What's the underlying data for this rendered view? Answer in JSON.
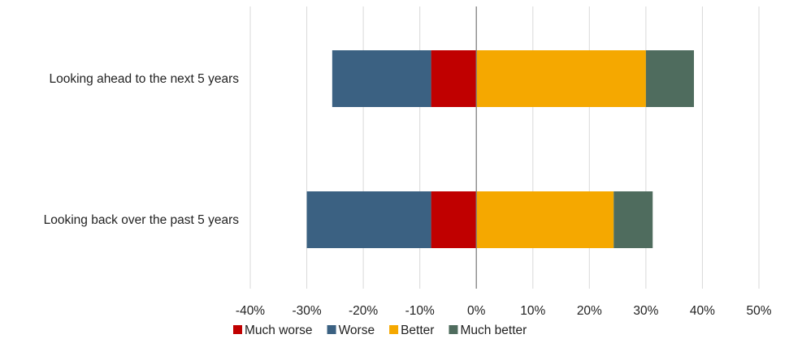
{
  "chart_data": {
    "type": "bar",
    "orientation": "horizontal",
    "stacked": "diverging",
    "categories": [
      "Looking ahead to the next 5 years",
      "Looking back over the past 5 years"
    ],
    "series": [
      {
        "name": "Much worse",
        "color": "#C00000",
        "values": [
          -8.0,
          -8.0
        ],
        "side": "negative"
      },
      {
        "name": "Worse",
        "color": "#3B6182",
        "values": [
          -17.5,
          -22.0
        ],
        "side": "negative"
      },
      {
        "name": "Better",
        "color": "#F5A800",
        "values": [
          30.0,
          24.3
        ],
        "side": "positive"
      },
      {
        "name": "Much better",
        "color": "#4F6C5E",
        "values": [
          8.5,
          6.9
        ],
        "side": "positive"
      }
    ],
    "xlim": [
      -40,
      50
    ],
    "xticks": [
      -40,
      -30,
      -20,
      -10,
      0,
      10,
      20,
      30,
      40,
      50
    ],
    "xtick_labels": [
      "-40%",
      "-30%",
      "-20%",
      "-10%",
      "0%",
      "10%",
      "20%",
      "30%",
      "40%",
      "50%"
    ],
    "grid": true,
    "legend_position": "bottom",
    "title": "",
    "xlabel": "",
    "ylabel": ""
  }
}
